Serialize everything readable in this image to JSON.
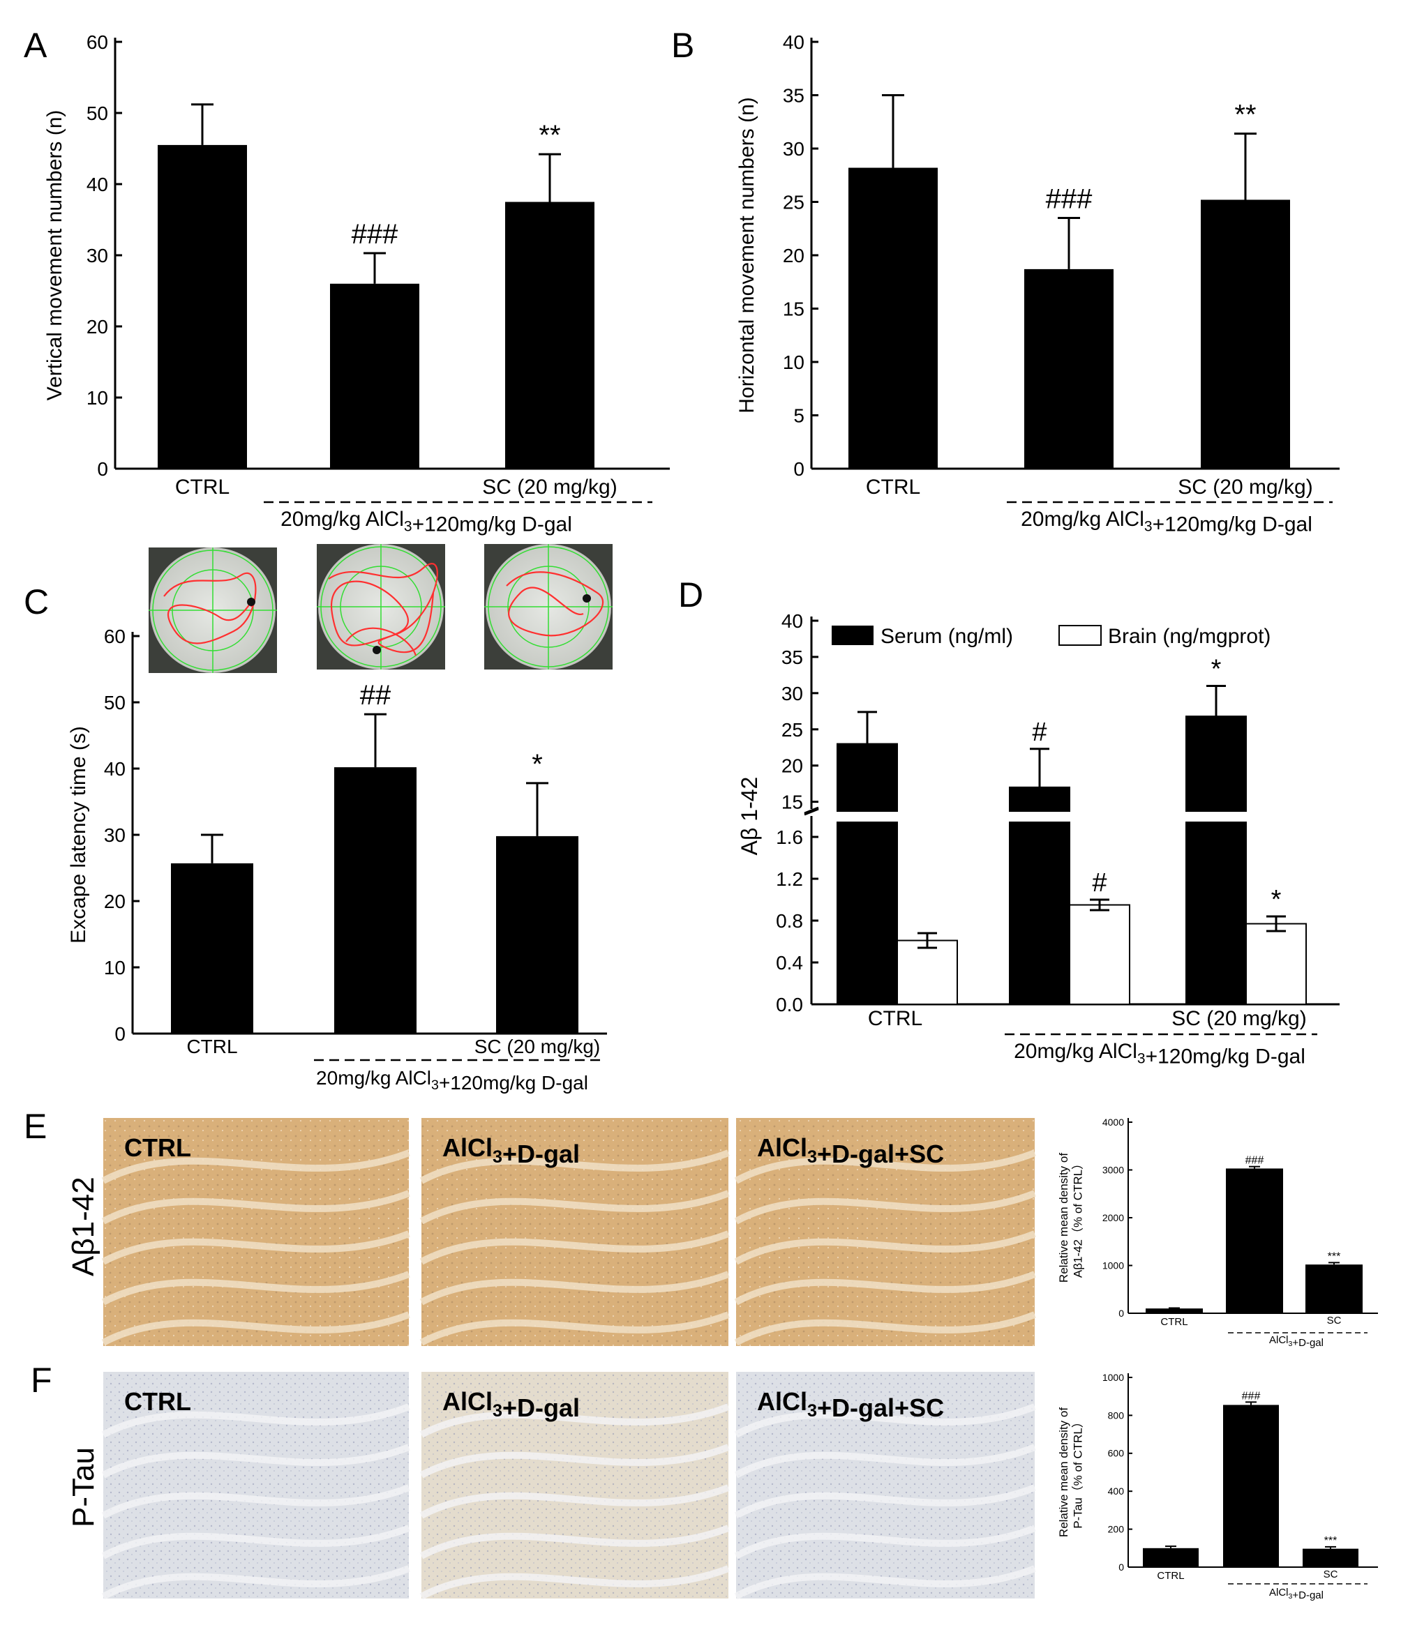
{
  "panels": {
    "A": {
      "letter": "A"
    },
    "B": {
      "letter": "B"
    },
    "C": {
      "letter": "C"
    },
    "D": {
      "letter": "D"
    },
    "E": {
      "letter": "E",
      "row_label": "Aβ1-42"
    },
    "F": {
      "letter": "F",
      "row_label": "P-Tau"
    }
  },
  "group_labels": {
    "ctrl": "CTRL",
    "sc": "SC (20 mg/kg)",
    "treatment": "20mg/kg AlCl3+120mg/kg D-gal",
    "treatment_short": "AlCl3+D-gal",
    "sc_short": "SC"
  },
  "micrograph_labels": [
    "CTRL",
    "AlCl3+D-gal",
    "AlCl3+D-gal+SC"
  ],
  "colors": {
    "bar": "#000000",
    "open_bar": "#ffffff",
    "tissue_abeta": "#d9b07a",
    "tissue_ptau": "#dde0e6",
    "maze_track": "#ff3030",
    "maze_grid": "#33dd33"
  },
  "chart_data": [
    {
      "id": "A",
      "type": "bar",
      "categories": [
        "CTRL",
        "",
        "SC (20 mg/kg)"
      ],
      "values": [
        45.5,
        26.0,
        37.5
      ],
      "errors": [
        5.7,
        4.3,
        6.7
      ],
      "annotations": [
        "",
        "###",
        "**"
      ],
      "ylabel": "Vertical movement numbers (n)",
      "ylim": [
        0,
        60
      ],
      "yticks": [
        "0",
        "10",
        "20",
        "30",
        "40",
        "50",
        "60"
      ]
    },
    {
      "id": "B",
      "type": "bar",
      "categories": [
        "CTRL",
        "",
        "SC (20 mg/kg)"
      ],
      "values": [
        28.2,
        18.7,
        25.2
      ],
      "errors": [
        6.8,
        4.8,
        6.2
      ],
      "annotations": [
        "",
        "###",
        "**"
      ],
      "ylabel": "Horizontal movement numbers (n)",
      "ylim": [
        0,
        40
      ],
      "yticks": [
        "0",
        "5",
        "10",
        "15",
        "20",
        "25",
        "30",
        "35",
        "40"
      ]
    },
    {
      "id": "C",
      "type": "bar",
      "categories": [
        "CTRL",
        "",
        "SC (20 mg/kg)"
      ],
      "values": [
        25.7,
        40.2,
        29.8
      ],
      "errors": [
        4.3,
        8.0,
        8.0
      ],
      "annotations": [
        "",
        "##",
        "*"
      ],
      "ylabel": "Excape latency time (s)",
      "ylim": [
        0,
        60
      ],
      "yticks": [
        "0",
        "10",
        "20",
        "30",
        "40",
        "50",
        "60"
      ]
    },
    {
      "id": "D",
      "type": "bar",
      "categories": [
        "CTRL",
        "",
        "SC (20 mg/kg)"
      ],
      "series": [
        {
          "name": "Serum (ng/ml)",
          "values": [
            23.0,
            17.0,
            26.8
          ],
          "errors": [
            4.4,
            5.3,
            4.2
          ],
          "annotations": [
            "",
            "#",
            "*"
          ]
        },
        {
          "name": "Brain (ng/mgprot)",
          "values": [
            0.61,
            0.95,
            0.77
          ],
          "errors": [
            0.07,
            0.05,
            0.07
          ],
          "annotations": [
            "",
            "#",
            "*"
          ]
        }
      ],
      "ylabel": "Aβ 1-42",
      "axis_break": [
        1.8,
        14
      ],
      "lower_ylim": [
        0,
        1.8
      ],
      "upper_ylim": [
        14,
        40
      ],
      "lower_ticks": [
        "0.0",
        "0.4",
        "0.8",
        "1.2",
        "1.6"
      ],
      "upper_ticks": [
        "15",
        "20",
        "25",
        "30",
        "35",
        "40"
      ],
      "legend": "top"
    },
    {
      "id": "E",
      "type": "bar",
      "categories": [
        "CTRL",
        "",
        "SC"
      ],
      "values": [
        100,
        3030,
        1020
      ],
      "errors": [
        10,
        40,
        40
      ],
      "annotations": [
        "",
        "###",
        "***"
      ],
      "ylabel": "Relative mean density of Aβ1-42（% of CTRL）",
      "ylim": [
        0,
        4000
      ],
      "yticks": [
        "0",
        "1000",
        "2000",
        "3000",
        "4000"
      ]
    },
    {
      "id": "F",
      "type": "bar",
      "categories": [
        "CTRL",
        "",
        "SC"
      ],
      "values": [
        100,
        855,
        97
      ],
      "errors": [
        10,
        15,
        10
      ],
      "annotations": [
        "",
        "###",
        "***"
      ],
      "ylabel": "Relative mean density of P-Tau（% of CTRL）",
      "ylim": [
        0,
        1000
      ],
      "yticks": [
        "0",
        "200",
        "400",
        "600",
        "800",
        "1000"
      ]
    }
  ]
}
